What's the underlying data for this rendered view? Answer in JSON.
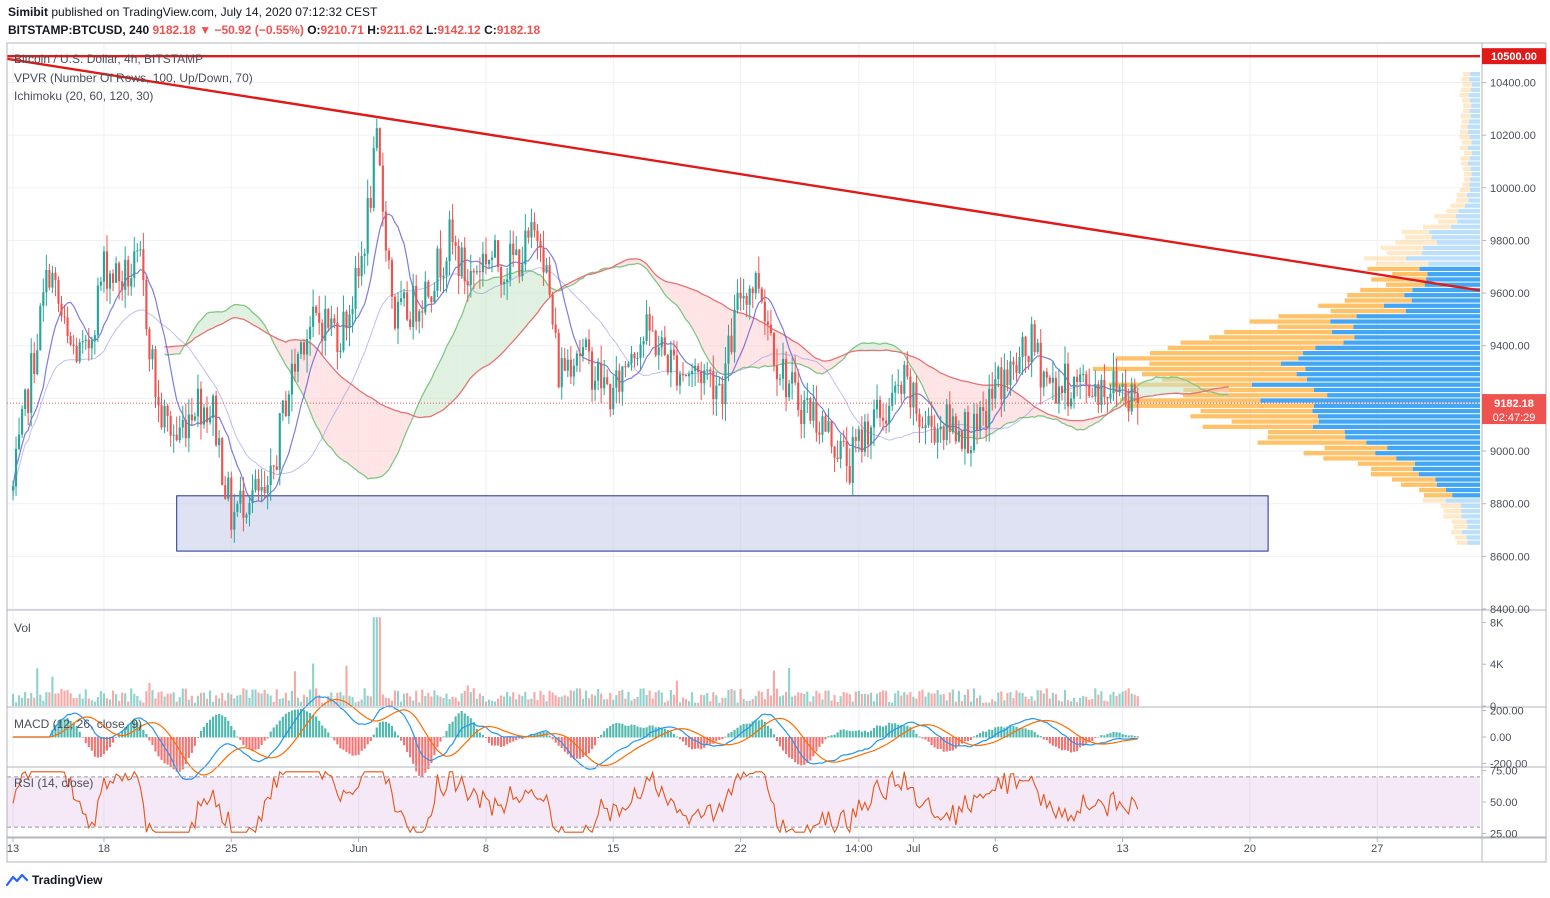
{
  "header": {
    "author": "Simibit",
    "published": "published on TradingView.com, July 14, 2020 07:12:32 CEST",
    "symbol": "BITSTAMP:BTCUSD, 240",
    "last": "9182.18",
    "change": "−50.92 (−0.55%)",
    "o_label": "O:",
    "o": "9210.71",
    "h_label": "H:",
    "h": "9211.62",
    "l_label": "L:",
    "l": "9142.12",
    "c_label": "C:",
    "c": "9182.18"
  },
  "legend": {
    "title": "Bitcoin / U.S. Dollar, 4h, BITSTAMP",
    "vpvr": "VPVR (Number Of Rows, 100, Up/Down, 70)",
    "ichimoku": "Ichimoku (20, 60, 120, 30)",
    "vol": "Vol",
    "macd": "MACD (12, 26, close, 9)",
    "rsi": "RSI (14, close)"
  },
  "price_labels": {
    "resistance": "10500.00",
    "current": "9182.18",
    "countdown": "02:47:29"
  },
  "footer": {
    "brand": "TradingView"
  },
  "colors": {
    "up": "#26a69a",
    "down": "#ef5350",
    "trendline": "#e01919",
    "kumo_bull": "#c8e6c9",
    "kumo_bear": "#ffcdd2",
    "tenkan": "#5b5bd6",
    "vp_up": "#2196f3",
    "vp_down": "#ffb74d",
    "zone": "#c5cae9"
  },
  "chart_data": [
    {
      "type": "candlestick",
      "title": "Bitcoin / U.S. Dollar, 4h, BITSTAMP",
      "ylim": [
        8400,
        10550
      ],
      "y_ticks": [
        8400,
        8600,
        8800,
        9000,
        9200,
        9400,
        9600,
        9800,
        10000,
        10200,
        10400
      ],
      "y_tick_labels": [
        "8400.00",
        "8600.00",
        "8800.00",
        "9000.00",
        "9200.00",
        "9400.00",
        "9600.00",
        "9800.00",
        "10000.00",
        "10200.00",
        "10400.00"
      ],
      "x_tick_labels": [
        "13",
        "18",
        "25",
        "Jun",
        "8",
        "15",
        "22",
        "14:00",
        "Jul",
        "6",
        "13",
        "20",
        "27"
      ],
      "close_path": [
        {
          "date": "2020-05-13",
          "close": 8850
        },
        {
          "date": "2020-05-14",
          "close": 9300
        },
        {
          "date": "2020-05-15",
          "close": 9700
        },
        {
          "date": "2020-05-16",
          "close": 9400
        },
        {
          "date": "2020-05-17",
          "close": 9350
        },
        {
          "date": "2020-05-18",
          "close": 9700
        },
        {
          "date": "2020-05-19",
          "close": 9650
        },
        {
          "date": "2020-05-20",
          "close": 9700
        },
        {
          "date": "2020-05-21",
          "close": 9150
        },
        {
          "date": "2020-05-22",
          "close": 9050
        },
        {
          "date": "2020-05-23",
          "close": 9200
        },
        {
          "date": "2020-05-24",
          "close": 9150
        },
        {
          "date": "2020-05-25",
          "close": 8750
        },
        {
          "date": "2020-05-26",
          "close": 8850
        },
        {
          "date": "2020-05-27",
          "close": 8800
        },
        {
          "date": "2020-05-28",
          "close": 9200
        },
        {
          "date": "2020-05-29",
          "close": 9450
        },
        {
          "date": "2020-05-30",
          "close": 9500
        },
        {
          "date": "2020-05-31",
          "close": 9450
        },
        {
          "date": "2020-06-01",
          "close": 9650
        },
        {
          "date": "2020-06-02",
          "close": 10150
        },
        {
          "date": "2020-06-03",
          "close": 9500
        },
        {
          "date": "2020-06-04",
          "close": 9550
        },
        {
          "date": "2020-06-05",
          "close": 9650
        },
        {
          "date": "2020-06-06",
          "close": 9800
        },
        {
          "date": "2020-06-07",
          "close": 9650
        },
        {
          "date": "2020-06-08",
          "close": 9750
        },
        {
          "date": "2020-06-09",
          "close": 9700
        },
        {
          "date": "2020-06-10",
          "close": 9750
        },
        {
          "date": "2020-06-11",
          "close": 9850
        },
        {
          "date": "2020-06-12",
          "close": 9300
        },
        {
          "date": "2020-06-13",
          "close": 9400
        },
        {
          "date": "2020-06-14",
          "close": 9300
        },
        {
          "date": "2020-06-15",
          "close": 9200
        },
        {
          "date": "2020-06-16",
          "close": 9400
        },
        {
          "date": "2020-06-17",
          "close": 9450
        },
        {
          "date": "2020-06-18",
          "close": 9350
        },
        {
          "date": "2020-06-19",
          "close": 9300
        },
        {
          "date": "2020-06-20",
          "close": 9300
        },
        {
          "date": "2020-06-21",
          "close": 9250
        },
        {
          "date": "2020-06-22",
          "close": 9600
        },
        {
          "date": "2020-06-23",
          "close": 9650
        },
        {
          "date": "2020-06-24",
          "close": 9350
        },
        {
          "date": "2020-06-25",
          "close": 9200
        },
        {
          "date": "2020-06-26",
          "close": 9150
        },
        {
          "date": "2020-06-27",
          "close": 9050
        },
        {
          "date": "2020-06-28",
          "close": 8950
        },
        {
          "date": "2020-06-29",
          "close": 9100
        },
        {
          "date": "2020-06-30",
          "close": 9150
        },
        {
          "date": "2020-07-01",
          "close": 9250
        },
        {
          "date": "2020-07-02",
          "close": 9100
        },
        {
          "date": "2020-07-03",
          "close": 9100
        },
        {
          "date": "2020-07-04",
          "close": 9100
        },
        {
          "date": "2020-07-05",
          "close": 9050
        },
        {
          "date": "2020-07-06",
          "close": 9250
        },
        {
          "date": "2020-07-07",
          "close": 9300
        },
        {
          "date": "2020-07-08",
          "close": 9400
        },
        {
          "date": "2020-07-09",
          "close": 9250
        },
        {
          "date": "2020-07-10",
          "close": 9250
        },
        {
          "date": "2020-07-11",
          "close": 9250
        },
        {
          "date": "2020-07-12",
          "close": 9250
        },
        {
          "date": "2020-07-13",
          "close": 9250
        },
        {
          "date": "2020-07-14",
          "close": 9182.18
        }
      ],
      "lines": [
        {
          "name": "resistance",
          "from": {
            "date": "2020-05-12",
            "price": 10500
          },
          "to": {
            "date": "2020-08-01",
            "price": 10500
          }
        },
        {
          "name": "trendline",
          "from": {
            "date": "2020-05-12",
            "price": 10490
          },
          "to": {
            "date": "2020-08-01",
            "price": 9610
          }
        }
      ],
      "support_zone": {
        "from_date": "2020-05-22",
        "to_date": "2020-07-21",
        "low": 8620,
        "high": 8830
      },
      "last_price": 9182.18
    },
    {
      "type": "bar",
      "title": "Vol",
      "y_tick_labels": [
        "8K",
        "4K",
        "0"
      ],
      "ylim": [
        0,
        9000
      ]
    },
    {
      "type": "line",
      "title": "MACD (12, 26, close, 9)",
      "y_tick_labels": [
        "200.00",
        "0.00",
        "-200.00"
      ],
      "ylim": [
        -220,
        220
      ]
    },
    {
      "type": "line",
      "title": "RSI (14, close)",
      "y_tick_labels": [
        "75.00",
        "50.00",
        "25.00"
      ],
      "ylim": [
        23,
        77
      ]
    }
  ]
}
